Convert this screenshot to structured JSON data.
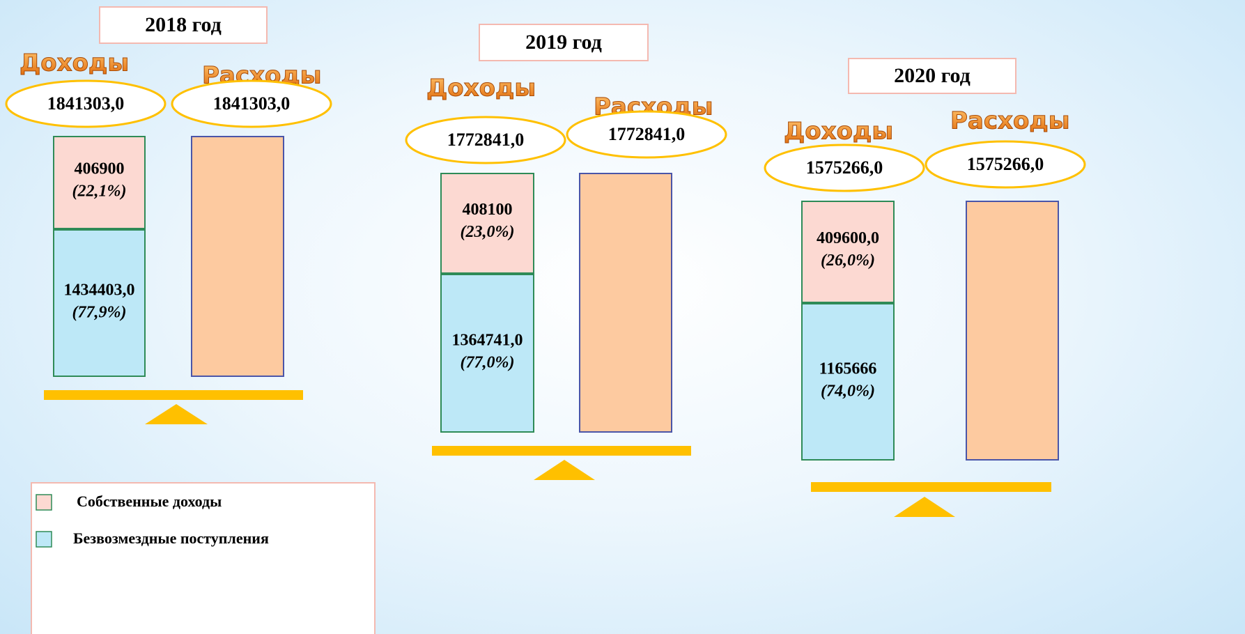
{
  "years": [
    {
      "title": "2018 год",
      "income_label": "Доходы",
      "expense_label": "Расходы",
      "income_total": "1841303,0",
      "expense_total": "1841303,0",
      "own": {
        "value": "406900",
        "share": "(22,1%)"
      },
      "grants": {
        "value": "1434403,0",
        "share": "(77,9%)"
      }
    },
    {
      "title": "2019 год",
      "income_label": "Доходы",
      "expense_label": "Расходы",
      "income_total": "1772841,0",
      "expense_total": "1772841,0",
      "own": {
        "value": "408100",
        "share": "(23,0%)"
      },
      "grants": {
        "value": "1364741,0",
        "share": "(77,0%)"
      }
    },
    {
      "title": "2020 год",
      "income_label": "Доходы",
      "expense_label": "Расходы",
      "income_total": "1575266,0",
      "expense_total": "1575266,0",
      "own": {
        "value": "409600,0",
        "share": "(26,0%)"
      },
      "grants": {
        "value": "1165666",
        "share": "(74,0%)"
      }
    }
  ],
  "legend": [
    "Собственные доходы",
    "Безвозмездные поступления"
  ]
}
